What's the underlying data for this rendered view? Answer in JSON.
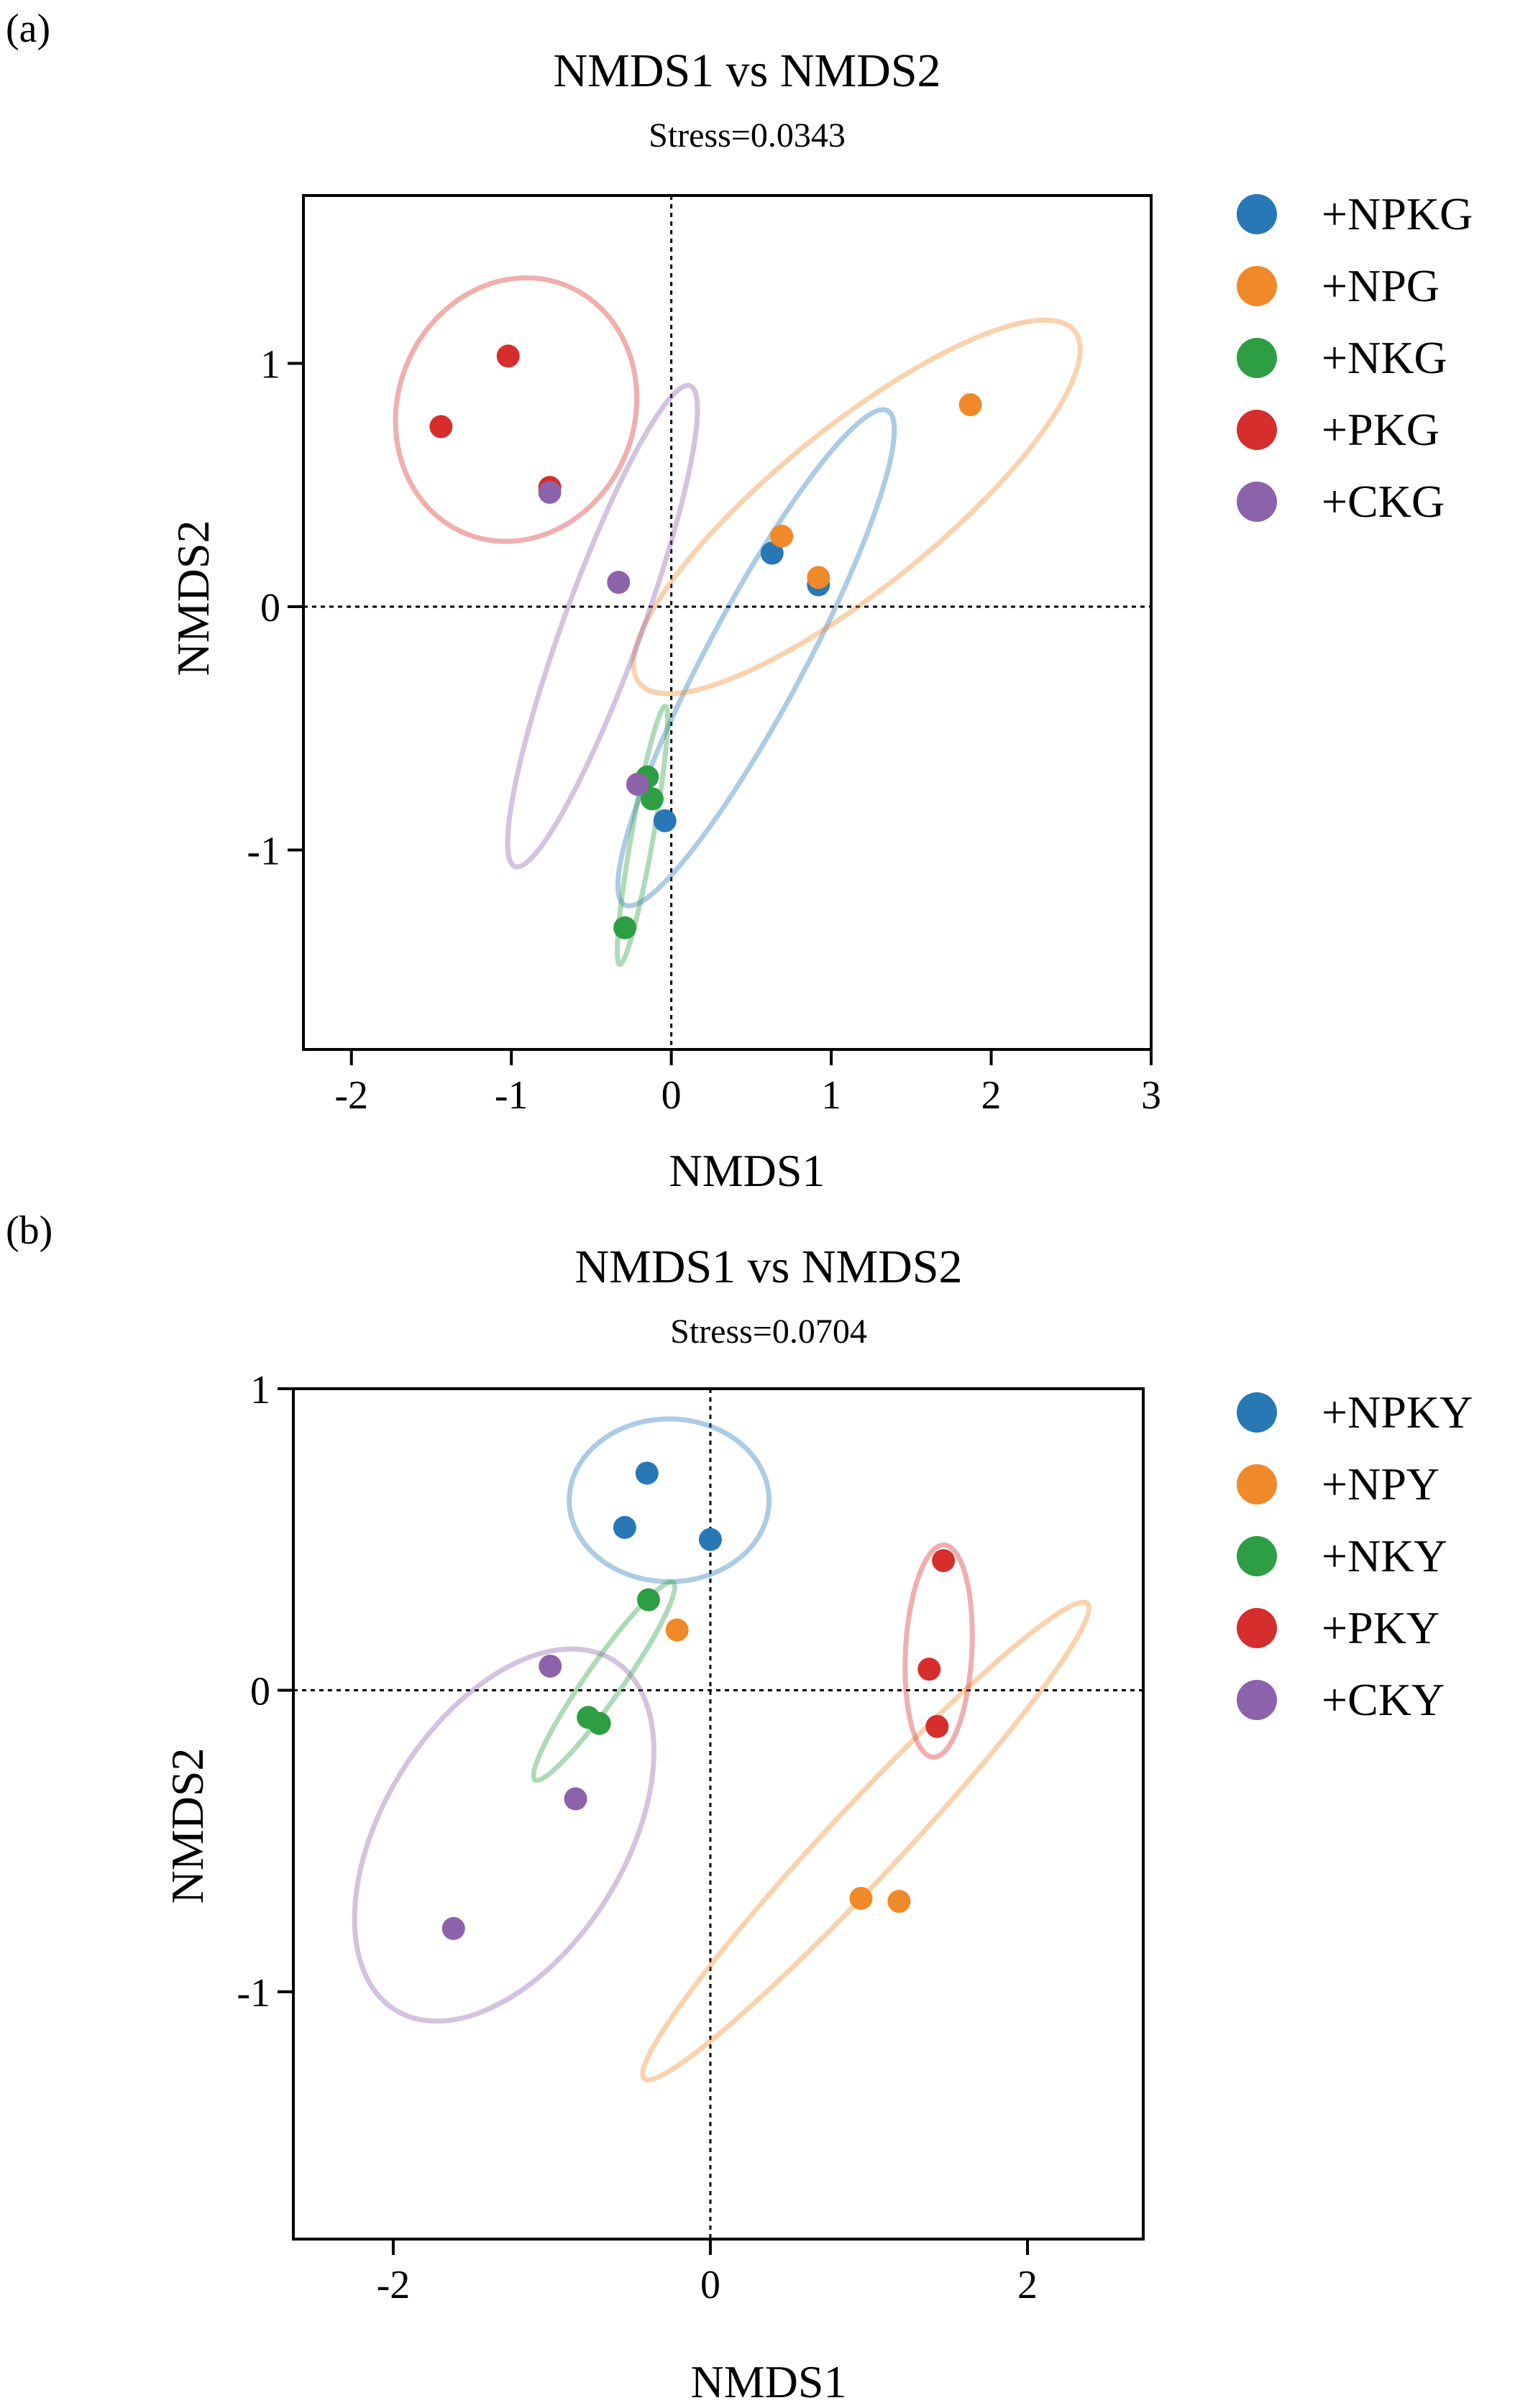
{
  "chart_data": [
    {
      "type": "scatter",
      "panel_label": "(a)",
      "title": "NMDS1 vs NMDS2",
      "subtitle": "Stress=0.0343",
      "xlabel": "NMDS1",
      "ylabel": "NMDS2",
      "xlim": [
        -2.3,
        3.0
      ],
      "ylim": [
        -1.82,
        1.69
      ],
      "xticks": [
        -2,
        -1,
        0,
        1,
        2,
        3
      ],
      "yticks": [
        -1,
        0,
        1
      ],
      "reference_lines": {
        "x": 0,
        "y": 0
      },
      "legend_position": "right-top",
      "series": [
        {
          "name": "+NPKG",
          "color": "#2878b5",
          "points": [
            [
              0.63,
              0.22
            ],
            [
              0.92,
              0.09
            ],
            [
              -0.04,
              -0.88
            ]
          ],
          "ellipse": {
            "cx": 0.53,
            "cy": -0.21,
            "rx": 1.75,
            "ry": 0.2,
            "angle_deg": 62
          }
        },
        {
          "name": "+NPG",
          "color": "#f0892a",
          "points": [
            [
              0.69,
              0.29
            ],
            [
              0.92,
              0.12
            ],
            [
              1.87,
              0.83
            ]
          ],
          "ellipse": {
            "cx": 1.16,
            "cy": 0.41,
            "rx": 1.75,
            "ry": 0.33,
            "angle_deg": 39
          }
        },
        {
          "name": "+NKG",
          "color": "#2e9e44",
          "points": [
            [
              -0.15,
              -0.7
            ],
            [
              -0.12,
              -0.79
            ],
            [
              -0.29,
              -1.32
            ]
          ],
          "ellipse": {
            "cx": -0.18,
            "cy": -0.94,
            "rx": 0.82,
            "ry": 0.045,
            "angle_deg": 80
          }
        },
        {
          "name": "+PKG",
          "color": "#d62d2d",
          "points": [
            [
              -1.02,
              1.03
            ],
            [
              -1.44,
              0.74
            ],
            [
              -0.76,
              0.49
            ]
          ],
          "ellipse": {
            "cx": -0.97,
            "cy": 0.81,
            "rx": 0.74,
            "ry": 0.55,
            "angle_deg": -22
          }
        },
        {
          "name": "+CKG",
          "color": "#8c62aa",
          "points": [
            [
              -0.76,
              0.47
            ],
            [
              -0.33,
              0.1
            ],
            [
              -0.21,
              -0.73
            ]
          ],
          "ellipse": {
            "cx": -0.43,
            "cy": -0.08,
            "rx": 1.6,
            "ry": 0.16,
            "angle_deg": 70
          }
        }
      ]
    },
    {
      "type": "scatter",
      "panel_label": "(b)",
      "title": "NMDS1 vs NMDS2",
      "subtitle": "Stress=0.0704",
      "xlabel": "NMDS1",
      "ylabel": "NMDS2",
      "xlim": [
        -2.63,
        2.73
      ],
      "ylim": [
        -1.82,
        1.0
      ],
      "xticks": [
        -2,
        0,
        2
      ],
      "yticks": [
        -1,
        0,
        1
      ],
      "reference_lines": {
        "x": 0,
        "y": 0
      },
      "legend_position": "right-top",
      "series": [
        {
          "name": "+NPKY",
          "color": "#2878b5",
          "points": [
            [
              -0.4,
              0.72
            ],
            [
              -0.54,
              0.54
            ],
            [
              0.0,
              0.5
            ]
          ],
          "ellipse": {
            "cx": -0.26,
            "cy": 0.63,
            "rx": 0.63,
            "ry": 0.27,
            "angle_deg": 0
          }
        },
        {
          "name": "+NPY",
          "color": "#f0892a",
          "points": [
            [
              -0.21,
              0.2
            ],
            [
              0.95,
              -0.69
            ],
            [
              1.19,
              -0.7
            ]
          ],
          "ellipse": {
            "cx": 0.98,
            "cy": -0.5,
            "rx": 2.05,
            "ry": 0.12,
            "angle_deg": 47
          }
        },
        {
          "name": "+NKY",
          "color": "#2e9e44",
          "points": [
            [
              -0.39,
              0.3
            ],
            [
              -0.77,
              -0.09
            ],
            [
              -0.7,
              -0.11
            ]
          ],
          "ellipse": {
            "cx": -0.67,
            "cy": 0.03,
            "rx": 0.76,
            "ry": 0.06,
            "angle_deg": 55
          }
        },
        {
          "name": "+PKY",
          "color": "#d62d2d",
          "points": [
            [
              1.47,
              0.43
            ],
            [
              1.38,
              0.07
            ],
            [
              1.43,
              -0.12
            ]
          ],
          "ellipse": {
            "cx": 1.44,
            "cy": 0.13,
            "rx": 0.67,
            "ry": 0.11,
            "angle_deg": 87
          }
        },
        {
          "name": "+CKY",
          "color": "#8c62aa",
          "points": [
            [
              -1.01,
              0.08
            ],
            [
              -0.85,
              -0.36
            ],
            [
              -1.62,
              -0.79
            ]
          ],
          "ellipse": {
            "cx": -1.3,
            "cy": -0.48,
            "rx": 1.3,
            "ry": 0.4,
            "angle_deg": 58
          }
        }
      ]
    }
  ]
}
